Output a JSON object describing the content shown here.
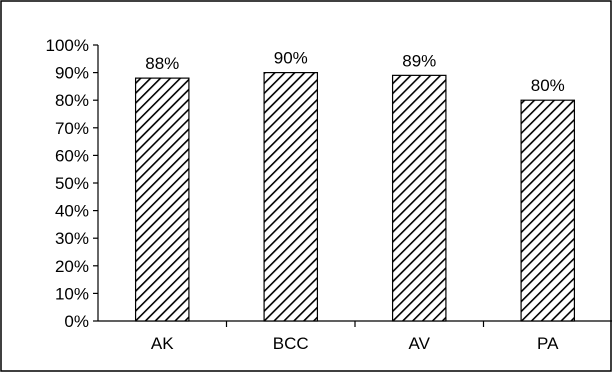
{
  "chart_data": {
    "type": "bar",
    "categories": [
      "AK",
      "BCC",
      "AV",
      "PA"
    ],
    "values": [
      88,
      90,
      89,
      80
    ],
    "data_labels": [
      "88%",
      "90%",
      "89%",
      "80%"
    ],
    "title": "",
    "xlabel": "",
    "ylabel": "",
    "ylim": [
      0,
      100
    ],
    "y_ticks": [
      0,
      10,
      20,
      30,
      40,
      50,
      60,
      70,
      80,
      90,
      100
    ],
    "y_tick_labels": [
      "0%",
      "10%",
      "20%",
      "30%",
      "40%",
      "50%",
      "60%",
      "70%",
      "80%",
      "90%",
      "100%"
    ],
    "grid": false,
    "legend": "none",
    "bar_fill": "diagonal-hatch",
    "colors": {
      "bar_stroke": "#000000",
      "hatch": "#000000",
      "background": "#ffffff",
      "axis": "#000000",
      "frame": "#000000"
    }
  }
}
